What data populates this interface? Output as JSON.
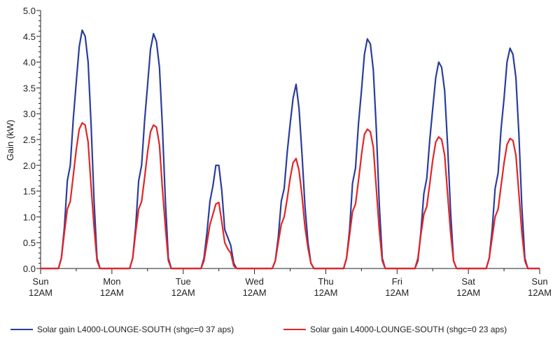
{
  "chart_data": {
    "type": "line",
    "title": "",
    "xlabel": "",
    "ylabel": "Gain (kW)",
    "ylim": [
      0,
      5.0
    ],
    "yticks": [
      "0.0",
      "0.5",
      "1.0",
      "1.5",
      "2.0",
      "2.5",
      "3.0",
      "3.5",
      "4.0",
      "4.5",
      "5.0"
    ],
    "xticks": [
      {
        "day": "Sun",
        "time": "12AM"
      },
      {
        "day": "Mon",
        "time": "12AM"
      },
      {
        "day": "Tue",
        "time": "12AM"
      },
      {
        "day": "Wed",
        "time": "12AM"
      },
      {
        "day": "Thu",
        "time": "12AM"
      },
      {
        "day": "Fri",
        "time": "12AM"
      },
      {
        "day": "Sat",
        "time": "12AM"
      },
      {
        "day": "Sun",
        "time": "12AM"
      }
    ],
    "x_start": "Sun 12AM",
    "x_step": "1 hour",
    "grid": false,
    "legend_position": "bottom",
    "series": [
      {
        "name": "Solar gain  L4000-LOUNGE-SOUTH (shgc=0 37 aps)",
        "color": "#2b3d9b",
        "values": [
          0,
          0,
          0,
          0,
          0,
          0,
          0,
          0.2,
          0.8,
          1.7,
          2.0,
          2.9,
          3.6,
          4.3,
          4.62,
          4.5,
          4.0,
          2.8,
          1.3,
          0.2,
          0,
          0,
          0,
          0,
          0,
          0,
          0,
          0,
          0,
          0,
          0,
          0.2,
          0.8,
          1.7,
          2.0,
          2.85,
          3.55,
          4.25,
          4.55,
          4.4,
          3.9,
          2.75,
          1.3,
          0.2,
          0,
          0,
          0,
          0,
          0,
          0,
          0,
          0,
          0,
          0,
          0,
          0.2,
          0.7,
          1.3,
          1.6,
          2.0,
          2.0,
          1.5,
          0.75,
          0.6,
          0.45,
          0.1,
          0,
          0,
          0,
          0,
          0,
          0,
          0,
          0,
          0,
          0,
          0,
          0,
          0,
          0.15,
          0.6,
          1.3,
          1.55,
          2.25,
          2.8,
          3.3,
          3.57,
          3.1,
          2.2,
          1.2,
          0.5,
          0.1,
          0,
          0,
          0,
          0,
          0,
          0,
          0,
          0,
          0,
          0,
          0,
          0.2,
          0.75,
          1.65,
          1.95,
          2.8,
          3.45,
          4.15,
          4.45,
          4.35,
          3.85,
          2.7,
          1.25,
          0.2,
          0,
          0,
          0,
          0,
          0,
          0,
          0,
          0,
          0,
          0,
          0,
          0.15,
          0.7,
          1.45,
          1.75,
          2.5,
          3.1,
          3.7,
          4.0,
          3.9,
          3.45,
          2.4,
          1.1,
          0.15,
          0,
          0,
          0,
          0,
          0,
          0,
          0,
          0,
          0,
          0,
          0,
          0.2,
          0.75,
          1.55,
          1.85,
          2.7,
          3.3,
          4.0,
          4.27,
          4.15,
          3.7,
          2.6,
          1.2,
          0.2,
          0,
          0,
          0,
          0,
          0
        ]
      },
      {
        "name": "Solar gain  L4000-LOUNGE-SOUTH (shgc=0 23 aps)",
        "color": "#e32526",
        "values": [
          0,
          0,
          0,
          0,
          0,
          0,
          0,
          0.2,
          0.7,
          1.15,
          1.3,
          1.8,
          2.3,
          2.7,
          2.82,
          2.78,
          2.45,
          1.6,
          0.8,
          0.15,
          0,
          0,
          0,
          0,
          0,
          0,
          0,
          0,
          0,
          0,
          0,
          0.2,
          0.7,
          1.15,
          1.3,
          1.75,
          2.25,
          2.65,
          2.78,
          2.74,
          2.4,
          1.55,
          0.8,
          0.15,
          0,
          0,
          0,
          0,
          0,
          0,
          0,
          0,
          0,
          0,
          0,
          0.15,
          0.5,
          0.85,
          1.05,
          1.25,
          1.28,
          0.9,
          0.5,
          0.38,
          0.3,
          0.05,
          0,
          0,
          0,
          0,
          0,
          0,
          0,
          0,
          0,
          0,
          0,
          0,
          0,
          0.15,
          0.5,
          0.85,
          1.0,
          1.35,
          1.75,
          2.05,
          2.13,
          1.9,
          1.4,
          0.8,
          0.4,
          0.1,
          0,
          0,
          0,
          0,
          0,
          0,
          0,
          0,
          0,
          0,
          0,
          0.2,
          0.65,
          1.1,
          1.25,
          1.7,
          2.2,
          2.6,
          2.7,
          2.65,
          2.35,
          1.55,
          0.75,
          0.15,
          0,
          0,
          0,
          0,
          0,
          0,
          0,
          0,
          0,
          0,
          0,
          0.2,
          0.65,
          1.05,
          1.2,
          1.65,
          2.1,
          2.45,
          2.55,
          2.5,
          2.2,
          1.45,
          0.7,
          0.15,
          0,
          0,
          0,
          0,
          0,
          0,
          0,
          0,
          0,
          0,
          0,
          0.2,
          0.6,
          1.0,
          1.15,
          1.6,
          2.05,
          2.4,
          2.52,
          2.48,
          2.2,
          1.45,
          0.7,
          0.15,
          0,
          0,
          0,
          0,
          0
        ]
      }
    ]
  }
}
